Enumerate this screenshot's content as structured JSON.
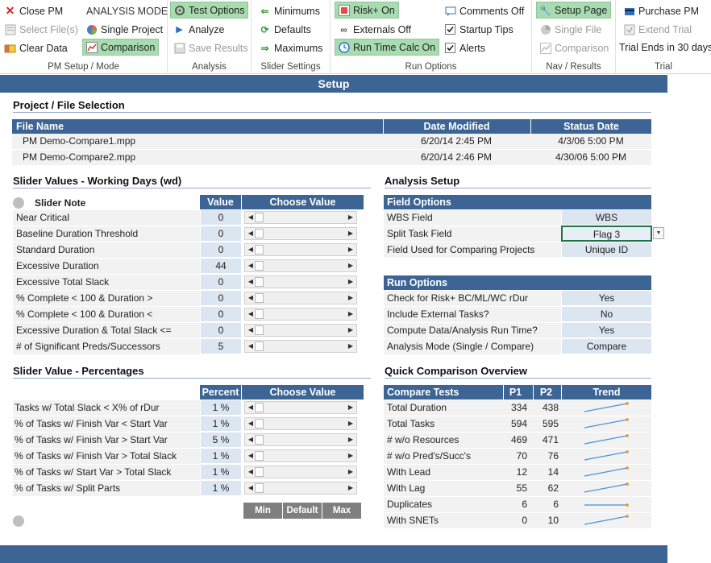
{
  "ribbon": {
    "pm_setup": {
      "close_pm": "Close PM",
      "select_files": "Select File(s)",
      "clear_data": "Clear Data",
      "analysis_mode_label": "ANALYSIS MODE",
      "single_project": "Single Project",
      "comparison": "Comparison",
      "title": "PM Setup / Mode"
    },
    "analysis": {
      "test_options": "Test Options",
      "analyze": "Analyze",
      "save_results": "Save Results",
      "title": "Analysis"
    },
    "slider_settings": {
      "minimums": "Minimums",
      "defaults": "Defaults",
      "maximums": "Maximums",
      "title": "Slider Settings"
    },
    "run_options": {
      "risk_on": "Risk+ On",
      "externals_off": "Externals Off",
      "run_time_calc_on": "Run Time Calc On",
      "comments_off": "Comments Off",
      "startup_tips": "Startup Tips",
      "alerts": "Alerts",
      "title": "Run Options"
    },
    "nav_results": {
      "setup_page": "Setup Page",
      "single_file": "Single File",
      "comparison": "Comparison",
      "title": "Nav / Results"
    },
    "trial": {
      "purchase_pm": "Purchase PM",
      "extend_trial": "Extend Trial",
      "trial_ends": "Trial Ends in 30 days",
      "title": "Trial"
    }
  },
  "setup": {
    "title": "Setup",
    "file_selection": {
      "heading": "Project / File Selection",
      "columns": [
        "File Name",
        "Date  Modified",
        "Status Date"
      ],
      "rows": [
        {
          "file": "PM Demo-Compare1.mpp",
          "modified": "6/20/14 2:45 PM",
          "status": "4/3/06 5:00 PM"
        },
        {
          "file": "PM Demo-Compare2.mpp",
          "modified": "6/20/14 2:46 PM",
          "status": "4/30/06 5:00 PM"
        }
      ]
    },
    "slider_values": {
      "heading": "Slider Values - Working Days (wd)",
      "note_label": "Slider Note",
      "value_header": "Value",
      "choose_header": "Choose Value",
      "rows": [
        {
          "label": "Near Critical",
          "value": "0"
        },
        {
          "label": "Baseline Duration Threshold",
          "value": "0"
        },
        {
          "label": "Standard Duration",
          "value": "0"
        },
        {
          "label": "Excessive Duration",
          "value": "44"
        },
        {
          "label": "Excessive Total Slack",
          "value": "0"
        },
        {
          "label": "% Complete < 100 & Duration >",
          "value": "0"
        },
        {
          "label": "% Complete < 100 & Duration <",
          "value": "0"
        },
        {
          "label": "Excessive Duration & Total Slack <=",
          "value": "0"
        },
        {
          "label": "# of Significant Preds/Successors",
          "value": "5"
        }
      ]
    },
    "slider_percentages": {
      "heading": "Slider Value - Percentages",
      "percent_header": "Percent",
      "choose_header": "Choose Value",
      "rows": [
        {
          "label": "Tasks w/ Total Slack < X% of rDur",
          "value": "1 %"
        },
        {
          "label": "% of Tasks w/ Finish Var < Start Var",
          "value": "1 %"
        },
        {
          "label": "% of Tasks w/  Finish Var > Start Var",
          "value": "5 %"
        },
        {
          "label": "% of Tasks w/  Finish Var > Total Slack",
          "value": "1 %"
        },
        {
          "label": "% of Tasks w/  Start Var > Total Slack",
          "value": "1 %"
        },
        {
          "label": "% of Tasks w/ Split Parts",
          "value": "1 %"
        }
      ],
      "buttons": {
        "min": "Min",
        "default": "Default",
        "max": "Max"
      }
    },
    "analysis_setup": {
      "heading": "Analysis Setup",
      "field_options_header": "Field Options",
      "field_options": [
        {
          "label": "WBS Field",
          "value": "WBS"
        },
        {
          "label": "Split Task Field",
          "value": "Flag 3"
        },
        {
          "label": "Field Used for Comparing Projects",
          "value": "Unique ID"
        }
      ],
      "run_options_header": "Run Options",
      "run_options": [
        {
          "label": "Check for Risk+ BC/ML/WC rDur",
          "value": "Yes"
        },
        {
          "label": "Include External Tasks?",
          "value": "No"
        },
        {
          "label": "Compute Data/Analysis Run Time?",
          "value": "Yes"
        },
        {
          "label": "Analysis Mode (Single / Compare)",
          "value": "Compare"
        }
      ]
    },
    "comparison": {
      "heading": "Quick Comparison Overview",
      "columns": [
        "Compare Tests",
        "P1",
        "P2",
        "Trend"
      ],
      "rows": [
        {
          "test": "Total Duration",
          "p1": "334",
          "p2": "438"
        },
        {
          "test": "Total Tasks",
          "p1": "594",
          "p2": "595"
        },
        {
          "test": "# w/o Resources",
          "p1": "469",
          "p2": "471"
        },
        {
          "test": "# w/o Pred's/Succ's",
          "p1": "70",
          "p2": "76"
        },
        {
          "test": "With Lead",
          "p1": "12",
          "p2": "14"
        },
        {
          "test": "With Lag",
          "p1": "55",
          "p2": "62"
        },
        {
          "test": "Duplicates",
          "p1": "6",
          "p2": "6"
        },
        {
          "test": "With SNETs",
          "p1": "0",
          "p2": "10"
        }
      ]
    }
  },
  "colors": {
    "accent": "#3c6596",
    "active": "#a8dbb0",
    "value_cell": "#dce6f1",
    "trend_line": "#4a90d9",
    "trend_point": "#f08a2a"
  }
}
